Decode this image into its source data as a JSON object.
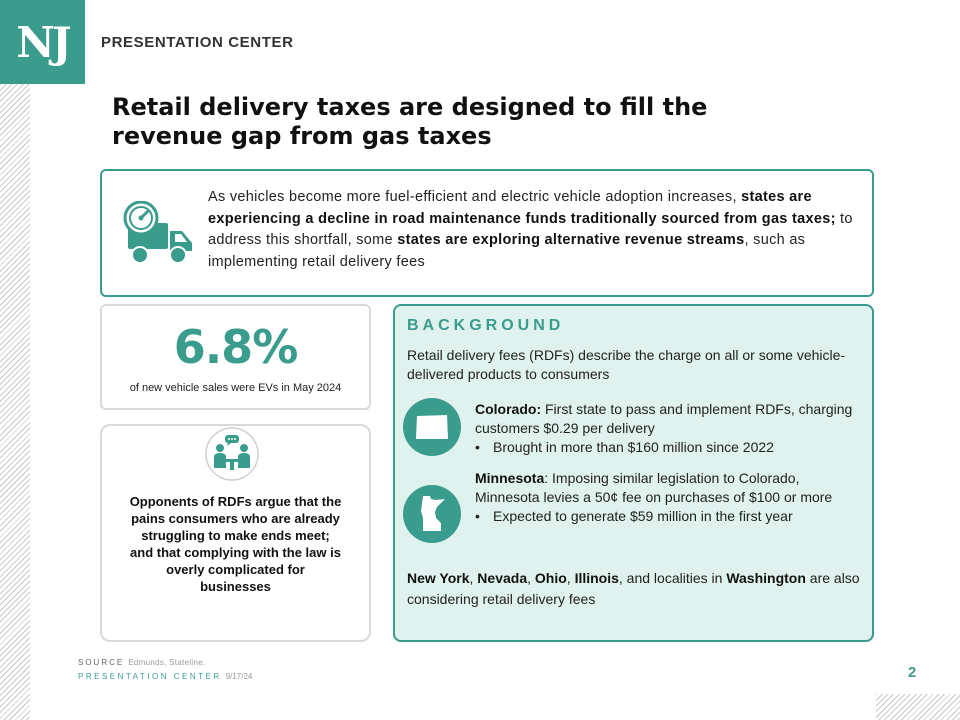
{
  "brand": {
    "logo_text": "NJ",
    "header_title": "PRESENTATION CENTER",
    "accent_color": "#3a9c8c"
  },
  "title": "Retail delivery taxes are designed to fill the revenue gap from gas taxes",
  "intro": {
    "icon": "truck-gauge-icon",
    "text_1": "As vehicles become more fuel-efficient and electric vehicle adoption increases, ",
    "bold_1": "states are experiencing a decline in road maintenance funds traditionally sourced from gas taxes;",
    "text_2": " to address this shortfall, some ",
    "bold_2": "states are exploring alternative revenue streams",
    "text_3": ", such as implementing retail delivery fees"
  },
  "stat": {
    "value": "6.8%",
    "caption": "of new vehicle sales were EVs in May 2024"
  },
  "opponents": {
    "icon": "people-discussion-icon",
    "line_1": "Opponents of RDFs argue that the",
    "line_2": "pains consumers who are already",
    "line_3": "struggling to make ends meet;",
    "line_4": "and that complying with the law is",
    "line_5": "overly complicated for",
    "line_6": "businesses"
  },
  "background": {
    "heading": "BACKGROUND",
    "intro": "Retail delivery fees (RDFs) describe the charge on all or some vehicle-delivered products to consumers",
    "colorado": {
      "icon": "colorado-map-icon",
      "name": "Colorado:",
      "text": " First state to pass and implement RDFs, charging customers $0.29 per delivery",
      "bullet": "Brought in more than $160 million since 2022"
    },
    "minnesota": {
      "icon": "minnesota-map-icon",
      "name": "Minnesota",
      "text": ": Imposing similar legislation to Colorado, Minnesota levies a 50¢ fee on purchases of $100 or more",
      "bullet": "Expected to generate $59 million in the first year"
    },
    "footer": {
      "ny": "New York",
      "sep_1": ", ",
      "nv": "Nevada",
      "sep_2": ", ",
      "oh": "Ohio",
      "sep_3": ", ",
      "il": "Illinois",
      "mid": ", and localities in ",
      "wa": "Washington",
      "end": " are also considering retail delivery fees"
    }
  },
  "footer": {
    "source_label": "SOURCE",
    "source_text": "Edmunds, Stateline.",
    "center_label": "PRESENTATION CENTER",
    "date": "9/17/24",
    "page_number": "2"
  }
}
